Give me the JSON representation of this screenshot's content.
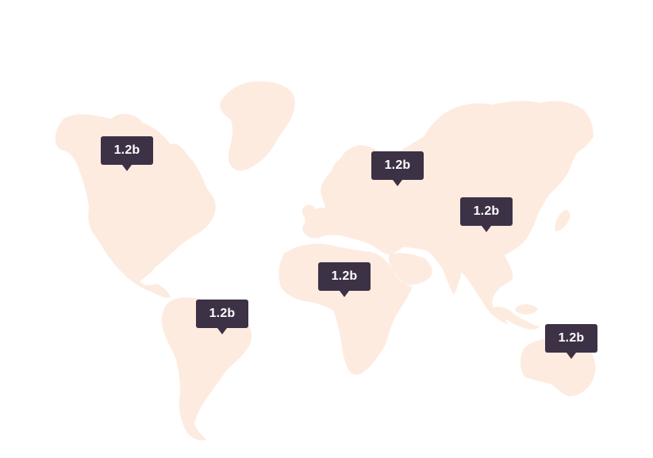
{
  "map": {
    "land_color": "#feebe0",
    "background_color": "#ffffff",
    "marker_color": "#3c3145",
    "marker_text_color": "#ffffff"
  },
  "markers": {
    "north_america": {
      "region": "North America",
      "value": "1.2b"
    },
    "europe": {
      "region": "Europe",
      "value": "1.2b"
    },
    "asia": {
      "region": "Asia",
      "value": "1.2b"
    },
    "africa": {
      "region": "Africa",
      "value": "1.2b"
    },
    "south_america": {
      "region": "South America",
      "value": "1.2b"
    },
    "australia": {
      "region": "Australia",
      "value": "1.2b"
    }
  }
}
